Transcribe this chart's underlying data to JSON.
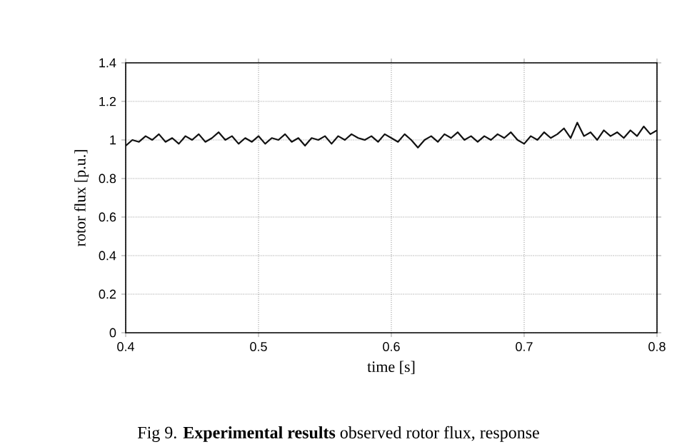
{
  "chart_data": {
    "type": "line",
    "xlabel": "time [s]",
    "ylabel": "rotor flux [p.u.]",
    "annotations": [
      "Fig 9. **Experimental results** observed rotor flux, response"
    ],
    "xlim": [
      0.4,
      0.8
    ],
    "ylim": [
      0,
      1.4
    ],
    "xticks": [
      0.4,
      0.5,
      0.6,
      0.7,
      0.8
    ],
    "yticks": [
      0,
      0.2,
      0.4,
      0.6,
      0.8,
      1,
      1.2,
      1.4
    ],
    "grid": true,
    "line_style": "solid",
    "marker": "none",
    "series": [
      {
        "color": "#111111",
        "x": [
          0.4,
          0.405,
          0.41,
          0.415,
          0.42,
          0.425,
          0.43,
          0.435,
          0.44,
          0.445,
          0.45,
          0.455,
          0.46,
          0.465,
          0.47,
          0.475,
          0.48,
          0.485,
          0.49,
          0.495,
          0.5,
          0.505,
          0.51,
          0.515,
          0.52,
          0.525,
          0.53,
          0.535,
          0.54,
          0.545,
          0.55,
          0.555,
          0.56,
          0.565,
          0.57,
          0.575,
          0.58,
          0.585,
          0.59,
          0.595,
          0.6,
          0.605,
          0.61,
          0.615,
          0.62,
          0.625,
          0.63,
          0.635,
          0.64,
          0.645,
          0.65,
          0.655,
          0.66,
          0.665,
          0.67,
          0.675,
          0.68,
          0.685,
          0.69,
          0.695,
          0.7,
          0.705,
          0.71,
          0.715,
          0.72,
          0.725,
          0.73,
          0.735,
          0.74,
          0.745,
          0.75,
          0.755,
          0.76,
          0.765,
          0.77,
          0.775,
          0.78,
          0.785,
          0.79,
          0.795,
          0.8
        ],
        "values": [
          0.97,
          1.0,
          0.99,
          1.02,
          1.0,
          1.03,
          0.99,
          1.01,
          0.98,
          1.02,
          1.0,
          1.03,
          0.99,
          1.01,
          1.04,
          1.0,
          1.02,
          0.98,
          1.01,
          0.99,
          1.02,
          0.98,
          1.01,
          1.0,
          1.03,
          0.99,
          1.01,
          0.97,
          1.01,
          1.0,
          1.02,
          0.98,
          1.02,
          1.0,
          1.03,
          1.01,
          1.0,
          1.02,
          0.99,
          1.03,
          1.01,
          0.99,
          1.03,
          1.0,
          0.96,
          1.0,
          1.02,
          0.99,
          1.03,
          1.01,
          1.04,
          1.0,
          1.02,
          0.99,
          1.02,
          1.0,
          1.03,
          1.01,
          1.04,
          1.0,
          0.98,
          1.02,
          1.0,
          1.04,
          1.01,
          1.03,
          1.06,
          1.01,
          1.09,
          1.02,
          1.04,
          1.0,
          1.05,
          1.02,
          1.04,
          1.01,
          1.05,
          1.02,
          1.07,
          1.03,
          1.05
        ]
      }
    ]
  }
}
